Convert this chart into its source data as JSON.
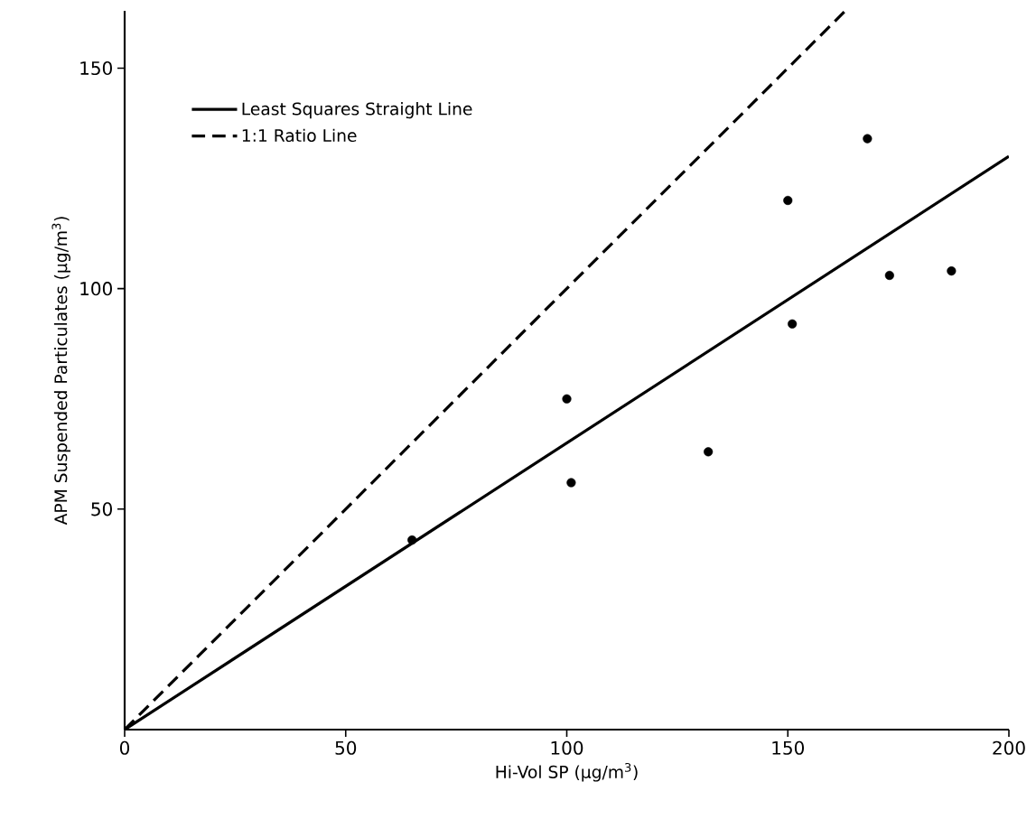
{
  "chart_data": {
    "type": "scatter",
    "xlabel": "Hi-Vol SP (µg/m$^{3}$)",
    "ylabel": "APM Suspended Particulates (µg/m$^{3}$)",
    "xlim": [
      0,
      200
    ],
    "ylim": [
      0,
      163
    ],
    "xticks": [
      0,
      50,
      100,
      150,
      200
    ],
    "yticks": [
      50,
      100,
      150
    ],
    "grid": false,
    "legend": "top left",
    "series": [
      {
        "type": "line",
        "name": "Least Squares Straight Line",
        "color": "#000000",
        "line_style": "solid",
        "marker": "none",
        "x": [
          0,
          200
        ],
        "values": [
          0,
          130
        ]
      },
      {
        "type": "line",
        "name": "1:1 Ratio Line",
        "color": "#000000",
        "line_style": "dashed",
        "marker": "none",
        "x": [
          0,
          163
        ],
        "values": [
          0,
          163
        ]
      },
      {
        "color": "#000000",
        "marker": "circle",
        "x": [
          65,
          100,
          101,
          132,
          150,
          151,
          168,
          173,
          187
        ],
        "values": [
          43,
          75,
          56,
          63,
          120,
          92,
          134,
          103,
          104
        ]
      }
    ]
  }
}
